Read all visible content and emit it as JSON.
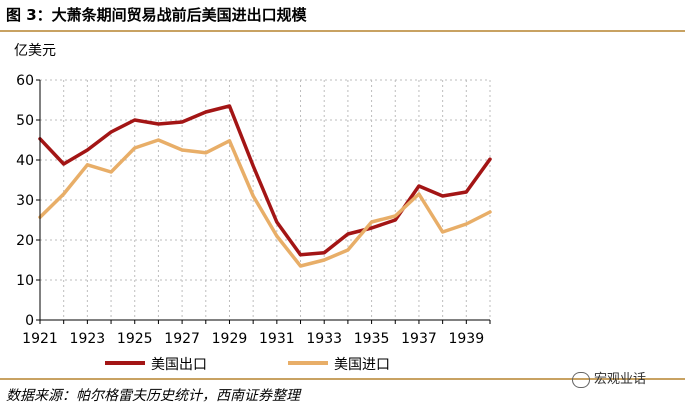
{
  "figure": {
    "title": "图 3：大萧条期间贸易战前后美国进出口规模",
    "source": "数据来源：帕尔格雷夫历史统计，西南证券整理",
    "watermark": "宏观业话"
  },
  "chart_data": {
    "type": "line",
    "title": "",
    "xlabel": "",
    "ylabel": "亿美元",
    "ylim": [
      0,
      60
    ],
    "yticks": [
      0,
      10,
      20,
      30,
      40,
      50,
      60
    ],
    "xlim": [
      1921,
      1940
    ],
    "xticks": [
      1921,
      1923,
      1925,
      1927,
      1929,
      1931,
      1933,
      1935,
      1937,
      1939
    ],
    "grid": "dotted",
    "legend_position": "bottom",
    "x": [
      1921,
      1922,
      1923,
      1924,
      1925,
      1926,
      1927,
      1928,
      1929,
      1930,
      1931,
      1932,
      1933,
      1934,
      1935,
      1936,
      1937,
      1938,
      1939,
      1940
    ],
    "series": [
      {
        "name": "美国出口",
        "color": "#a31515",
        "values": [
          45.3,
          39,
          42.5,
          47,
          50,
          49,
          49.5,
          52,
          53.5,
          38.5,
          24.5,
          16.3,
          16.8,
          21.5,
          23,
          25,
          33.5,
          31,
          32,
          40.2
        ]
      },
      {
        "name": "美国进口",
        "color": "#e8ae68",
        "values": [
          25.7,
          31.5,
          38.8,
          37,
          43,
          45,
          42.5,
          41.8,
          44.8,
          31,
          21,
          13.5,
          15,
          17.5,
          24.5,
          26,
          31.5,
          22,
          24,
          27
        ]
      }
    ]
  }
}
